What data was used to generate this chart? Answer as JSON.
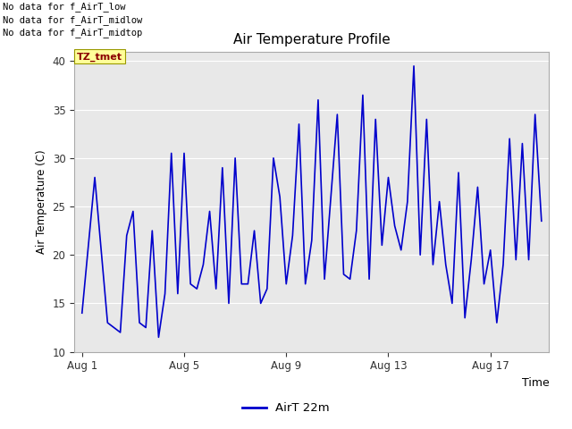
{
  "title": "Air Temperature Profile",
  "xlabel": "Time",
  "ylabel": "Air Temperature (C)",
  "ylim": [
    10,
    41
  ],
  "yticks": [
    10,
    15,
    20,
    25,
    30,
    35,
    40
  ],
  "line_color": "#0000cc",
  "line_width": 1.2,
  "plot_bg_color": "#e8e8e8",
  "fig_bg_color": "#ffffff",
  "legend_label": "AirT 22m",
  "annotations": [
    "No data for f_AirT_low",
    "No data for f_AirT_midlow",
    "No data for f_AirT_midtop"
  ],
  "tz_label": "TZ_tmet",
  "x_tick_labels": [
    "Aug 1",
    "Aug 5",
    "Aug 9",
    "Aug 13",
    "Aug 17"
  ],
  "x_tick_positions": [
    0,
    4,
    8,
    12,
    16
  ],
  "x_lim": [
    -0.3,
    18.3
  ],
  "data_x": [
    0,
    0.5,
    1.0,
    1.25,
    1.5,
    1.75,
    2.0,
    2.25,
    2.5,
    2.75,
    3.0,
    3.25,
    3.5,
    3.75,
    4.0,
    4.25,
    4.5,
    4.75,
    5.0,
    5.25,
    5.5,
    5.75,
    6.0,
    6.25,
    6.5,
    6.75,
    7.0,
    7.25,
    7.5,
    7.75,
    8.0,
    8.25,
    8.5,
    8.75,
    9.0,
    9.25,
    9.5,
    9.75,
    10.0,
    10.25,
    10.5,
    10.75,
    11.0,
    11.25,
    11.5,
    11.75,
    12.0,
    12.25,
    12.5,
    12.75,
    13.0,
    13.25,
    13.5,
    13.75,
    14.0,
    14.25,
    14.5,
    14.75,
    15.0,
    15.25,
    15.5,
    15.75,
    16.0,
    16.25,
    16.5,
    16.75,
    17.0,
    17.25,
    17.5,
    17.75,
    18.0
  ],
  "data_y": [
    14.0,
    28.0,
    13.0,
    12.5,
    12.0,
    22.0,
    24.5,
    13.0,
    12.5,
    22.5,
    11.5,
    16.0,
    30.5,
    16.0,
    30.5,
    17.0,
    16.5,
    19.0,
    24.5,
    16.5,
    29.0,
    15.0,
    30.0,
    17.0,
    17.0,
    22.5,
    15.0,
    16.5,
    30.0,
    26.0,
    17.0,
    22.0,
    33.5,
    17.0,
    21.5,
    36.0,
    17.5,
    26.0,
    34.5,
    18.0,
    17.5,
    22.5,
    36.5,
    17.5,
    34.0,
    21.0,
    28.0,
    23.0,
    20.5,
    25.5,
    39.5,
    20.0,
    34.0,
    19.0,
    25.5,
    19.0,
    15.0,
    28.5,
    13.5,
    19.5,
    27.0,
    17.0,
    20.5,
    13.0,
    19.0,
    32.0,
    19.5,
    31.5,
    19.5,
    34.5,
    23.5
  ]
}
